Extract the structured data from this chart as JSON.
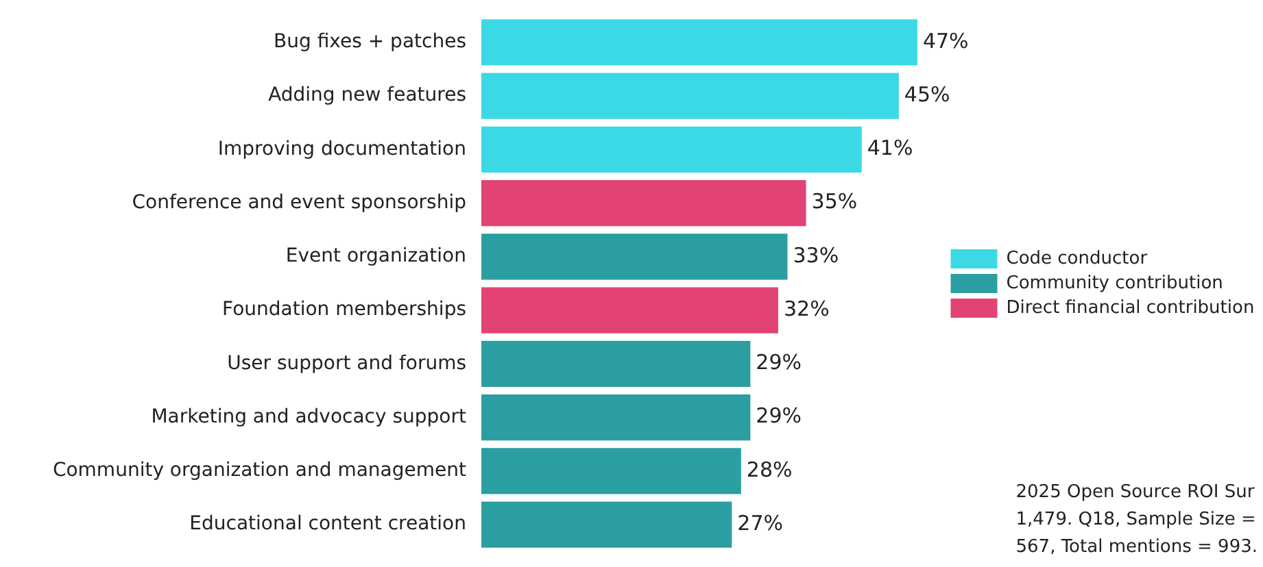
{
  "chart_data": {
    "type": "bar",
    "orientation": "horizontal",
    "stacked": true,
    "legend": "right",
    "categories": [
      "Bug fixes + patches",
      "Adding new features",
      "Improving documentation",
      "Conference and event sponsorship",
      "Event organization",
      "Foundation memberships",
      "User support and forums",
      "Marketing and advocacy support",
      "Community organization and management",
      "Educational content creation"
    ],
    "series": [
      {
        "name": "Code conductor",
        "color": "#3bd9e6",
        "values": [
          47,
          45,
          41,
          null,
          null,
          null,
          null,
          null,
          null,
          null
        ],
        "value_labels": [
          "47%",
          "45%",
          "41%",
          null,
          null,
          null,
          null,
          null,
          null,
          null
        ]
      },
      {
        "name": "Community contribution",
        "color": "#2b9ea1",
        "values": [
          null,
          null,
          null,
          null,
          33,
          null,
          29,
          29,
          28,
          27
        ],
        "value_labels": [
          null,
          null,
          null,
          null,
          "33%",
          null,
          "29%",
          "29%",
          "28%",
          "27%"
        ]
      },
      {
        "name": "Direct financial contribution",
        "color": "#e34374",
        "values": [
          null,
          null,
          null,
          35,
          null,
          32,
          null,
          null,
          null,
          null
        ],
        "value_labels": [
          null,
          null,
          null,
          "35%",
          null,
          "32%",
          null,
          null,
          null,
          null
        ]
      }
    ],
    "annotations": [
      "2025 Open Source ROI Sur\n1,479. Q18, Sample Size =\n567, Total mentions = 993."
    ]
  }
}
